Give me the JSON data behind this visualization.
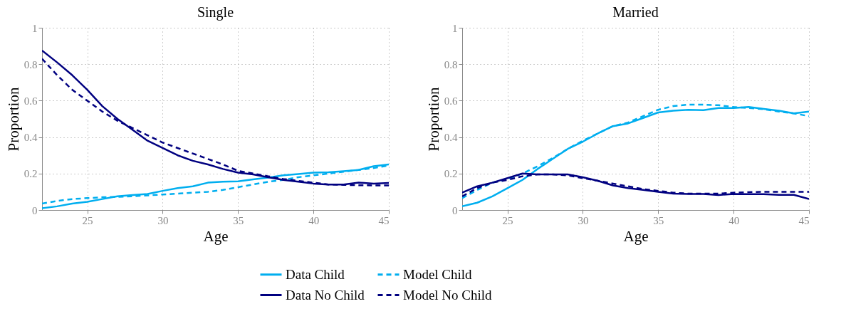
{
  "chart_data": [
    {
      "type": "line",
      "title": "Single",
      "xlabel": "Age",
      "ylabel": "Proportion",
      "x": [
        22,
        23,
        24,
        25,
        26,
        27,
        28,
        29,
        30,
        31,
        32,
        33,
        34,
        35,
        36,
        37,
        38,
        39,
        40,
        41,
        42,
        43,
        44,
        45
      ],
      "xlim": [
        22,
        45
      ],
      "xticks": [
        25,
        30,
        35,
        40,
        45
      ],
      "ylim": [
        0,
        1
      ],
      "yticks": [
        0,
        0.2,
        0.4,
        0.6,
        0.8,
        1
      ],
      "grid": true,
      "legend": "bottom",
      "marker": "none",
      "series": [
        {
          "name": "Data Child",
          "color": "#00aeef",
          "line_style": "solid",
          "values": [
            0.01,
            0.02,
            0.035,
            0.045,
            0.06,
            0.075,
            0.082,
            0.088,
            0.105,
            0.12,
            0.13,
            0.15,
            0.155,
            0.157,
            0.168,
            0.178,
            0.19,
            0.197,
            0.205,
            0.207,
            0.213,
            0.22,
            0.24,
            0.25
          ]
        },
        {
          "name": "Model Child",
          "color": "#00aeef",
          "line_style": "dashed",
          "values": [
            0.035,
            0.05,
            0.06,
            0.065,
            0.07,
            0.072,
            0.075,
            0.08,
            0.085,
            0.09,
            0.095,
            0.1,
            0.11,
            0.125,
            0.14,
            0.155,
            0.165,
            0.18,
            0.19,
            0.2,
            0.21,
            0.22,
            0.23,
            0.245
          ]
        },
        {
          "name": "Data No Child",
          "color": "#000080",
          "line_style": "solid",
          "values": [
            0.875,
            0.81,
            0.74,
            0.66,
            0.57,
            0.5,
            0.44,
            0.38,
            0.34,
            0.3,
            0.27,
            0.25,
            0.225,
            0.205,
            0.195,
            0.18,
            0.165,
            0.155,
            0.145,
            0.14,
            0.14,
            0.15,
            0.145,
            0.148
          ]
        },
        {
          "name": "Model No Child",
          "color": "#000080",
          "line_style": "dashed",
          "values": [
            0.83,
            0.74,
            0.66,
            0.6,
            0.54,
            0.49,
            0.45,
            0.41,
            0.37,
            0.34,
            0.31,
            0.28,
            0.25,
            0.215,
            0.2,
            0.185,
            0.17,
            0.16,
            0.15,
            0.14,
            0.138,
            0.136,
            0.135,
            0.135
          ]
        }
      ]
    },
    {
      "type": "line",
      "title": "Married",
      "xlabel": "Age",
      "ylabel": "Proportion",
      "x": [
        22,
        23,
        24,
        25,
        26,
        27,
        28,
        29,
        30,
        31,
        32,
        33,
        34,
        35,
        36,
        37,
        38,
        39,
        40,
        41,
        42,
        43,
        44,
        45
      ],
      "xlim": [
        22,
        45
      ],
      "xticks": [
        25,
        30,
        35,
        40,
        45
      ],
      "ylim": [
        0,
        1
      ],
      "yticks": [
        0,
        0.2,
        0.4,
        0.6,
        0.8,
        1
      ],
      "grid": true,
      "legend": "bottom",
      "marker": "none",
      "series": [
        {
          "name": "Data Child",
          "color": "#00aeef",
          "line_style": "solid",
          "values": [
            0.02,
            0.04,
            0.075,
            0.12,
            0.165,
            0.225,
            0.28,
            0.335,
            0.375,
            0.42,
            0.46,
            0.475,
            0.505,
            0.535,
            0.545,
            0.55,
            0.548,
            0.56,
            0.56,
            0.565,
            0.555,
            0.545,
            0.53,
            0.54
          ]
        },
        {
          "name": "Model Child",
          "color": "#00aeef",
          "line_style": "dashed",
          "values": [
            0.065,
            0.11,
            0.15,
            0.17,
            0.2,
            0.24,
            0.285,
            0.335,
            0.38,
            0.42,
            0.46,
            0.48,
            0.515,
            0.55,
            0.57,
            0.578,
            0.578,
            0.575,
            0.565,
            0.56,
            0.553,
            0.54,
            0.53,
            0.515
          ]
        },
        {
          "name": "Data No Child",
          "color": "#000080",
          "line_style": "solid",
          "values": [
            0.095,
            0.13,
            0.15,
            0.175,
            0.2,
            0.195,
            0.195,
            0.195,
            0.18,
            0.16,
            0.135,
            0.12,
            0.11,
            0.1,
            0.09,
            0.088,
            0.088,
            0.082,
            0.088,
            0.087,
            0.087,
            0.083,
            0.083,
            0.06
          ]
        },
        {
          "name": "Model No Child",
          "color": "#000080",
          "line_style": "dashed",
          "values": [
            0.075,
            0.12,
            0.15,
            0.165,
            0.185,
            0.195,
            0.195,
            0.19,
            0.175,
            0.16,
            0.145,
            0.13,
            0.115,
            0.105,
            0.095,
            0.09,
            0.09,
            0.09,
            0.095,
            0.098,
            0.1,
            0.1,
            0.1,
            0.1
          ]
        }
      ]
    }
  ]
}
